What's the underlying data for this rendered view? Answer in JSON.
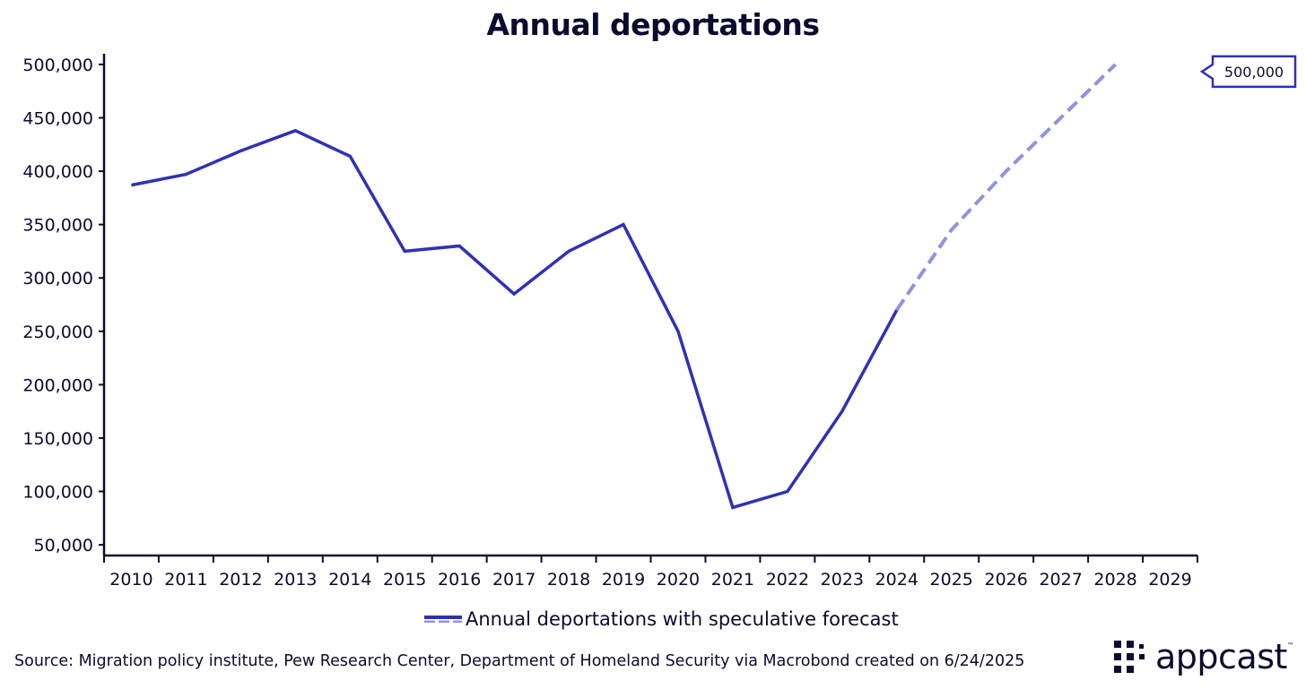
{
  "chart_data": {
    "type": "line",
    "title": "Annual deportations",
    "xlabel": "",
    "ylabel": "",
    "x": [
      "2010",
      "2011",
      "2012",
      "2013",
      "2014",
      "2015",
      "2016",
      "2017",
      "2018",
      "2019",
      "2020",
      "2021",
      "2022",
      "2023",
      "2024",
      "2025",
      "2026",
      "2027",
      "2028",
      "2029"
    ],
    "ylim": [
      40000,
      510000
    ],
    "yticks": [
      50000,
      100000,
      150000,
      200000,
      250000,
      300000,
      350000,
      400000,
      450000,
      500000
    ],
    "ytick_labels": [
      "50,000",
      "100,000",
      "150,000",
      "200,000",
      "250,000",
      "300,000",
      "350,000",
      "400,000",
      "450,000",
      "500,000"
    ],
    "series": [
      {
        "name": "Annual deportations",
        "style": "solid",
        "color": "#2f31b5",
        "x": [
          2010,
          2011,
          2012,
          2013,
          2014,
          2015,
          2016,
          2017,
          2018,
          2019,
          2020,
          2021,
          2022,
          2023,
          2024
        ],
        "values": [
          387000,
          397000,
          419000,
          438000,
          414000,
          325000,
          330000,
          285000,
          325000,
          350000,
          250000,
          85000,
          100000,
          175000,
          270000
        ]
      },
      {
        "name": "speculative forecast",
        "style": "dashed",
        "color": "#8f93dd",
        "x": [
          2024,
          2025,
          2026,
          2027,
          2028
        ],
        "values": [
          270000,
          345000,
          400000,
          450000,
          500000
        ]
      }
    ],
    "annotation": {
      "label": "500,000",
      "value": 500000,
      "color": "#2f31b5"
    },
    "legend": {
      "label": "Annual deportations with speculative forecast",
      "position": "bottom-center"
    },
    "grid": false
  },
  "source": "Source: Migration policy institute, Pew Research Center, Department of Homeland Security via Macrobond created on 6/24/2025",
  "logo": {
    "text": "appcast",
    "trademark": "™"
  }
}
